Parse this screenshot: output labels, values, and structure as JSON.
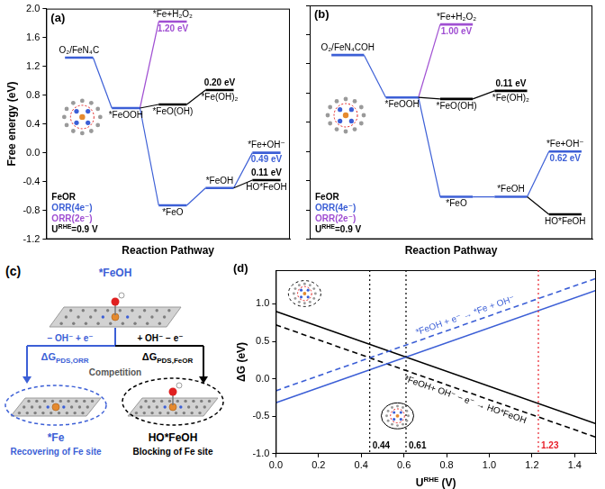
{
  "chart_data": [
    {
      "type": "energy_diagram",
      "panel": "(a)",
      "xlabel": "Reaction Pathway",
      "ylabel": "Free energy (eV)",
      "xlim": [
        -0.7,
        4.5
      ],
      "ylim": [
        -1.2,
        2.0
      ],
      "yticks": [
        -1.2,
        -0.8,
        -0.4,
        {
          "value": 0,
          "label": "0.0"
        },
        0.4,
        0.8,
        1.2,
        1.6,
        {
          "value": 2,
          "label": "2.0"
        }
      ],
      "tick_labels": "y",
      "condition": {
        "base": "U",
        "sup": "RHE",
        "rest": "=0.9 V"
      },
      "series": [
        {
          "name": "FeOR",
          "color": "#000000",
          "segments": [
            {
              "x": [
                1,
                2,
                3
              ],
              "values": [
                0.62,
                0.67,
                0.87
              ],
              "labels": [
                null,
                "*FeO(OH)",
                "*Fe(OH)₂"
              ],
              "notes": [
                null,
                null,
                "0.20 eV"
              ]
            },
            {
              "x": [
                3,
                4
              ],
              "values": [
                -0.49,
                -0.38
              ],
              "labels": [
                null,
                "HO*FeOH"
              ],
              "notes": [
                null,
                "0.11 eV"
              ]
            }
          ]
        },
        {
          "name": "ORR(4e⁻)",
          "color": "#3c5fd6",
          "segments": [
            {
              "x": [
                0,
                1,
                2,
                3,
                4
              ],
              "values": [
                1.32,
                0.62,
                -0.73,
                -0.49,
                0
              ],
              "labels": [
                "O₂/FeN₄C",
                "*FeOOH",
                "*FeO",
                "*FeOH",
                "*Fe+OH⁻"
              ],
              "notes": [
                null,
                null,
                null,
                null,
                "0.49 eV"
              ]
            }
          ]
        },
        {
          "name": "ORR(2e⁻)",
          "color": "#a04fd2",
          "segments": [
            {
              "x": [
                1,
                2
              ],
              "values": [
                0.62,
                1.82
              ],
              "labels": [
                null,
                "*Fe+H₂O₂"
              ],
              "notes": [
                null,
                "1.20 eV"
              ]
            }
          ]
        }
      ]
    },
    {
      "type": "energy_diagram",
      "panel": "(b)",
      "xlabel": "Reaction Pathway",
      "xlim": [
        -0.7,
        4.5
      ],
      "ylim": [
        -1.2,
        2.0
      ],
      "yticks": [
        -1.2,
        -0.8,
        -0.4,
        {
          "value": 0,
          "label": "0.0"
        },
        0.4,
        0.8,
        1.2,
        1.6,
        {
          "value": 2,
          "label": "2.0"
        }
      ],
      "tick_labels": false,
      "condition": {
        "base": "U",
        "sup": "RHE",
        "rest": "=0.9 V"
      },
      "series": [
        {
          "name": "FeOR",
          "color": "#000000",
          "segments": [
            {
              "x": [
                1,
                2,
                3
              ],
              "values": [
                0.74,
                0.72,
                0.83
              ],
              "labels": [
                null,
                "*FeO(OH)",
                "*Fe(OH)₂"
              ],
              "notes": [
                null,
                null,
                "0.11 eV"
              ]
            },
            {
              "x": [
                3,
                4
              ],
              "values": [
                -0.62,
                -0.86
              ],
              "labels": [
                null,
                "HO*FeOH"
              ],
              "notes": [
                null,
                null
              ]
            }
          ]
        },
        {
          "name": "ORR(4e⁻)",
          "color": "#3c5fd6",
          "segments": [
            {
              "x": [
                0,
                1,
                2,
                3,
                4
              ],
              "values": [
                1.32,
                0.74,
                -0.62,
                -0.62,
                0
              ],
              "labels": [
                "O₂/FeN₄COH",
                "*FeOOH",
                "*FeO",
                "*FeOH",
                "*Fe+OH⁻"
              ],
              "notes": [
                null,
                null,
                null,
                null,
                "0.62 eV"
              ]
            }
          ]
        },
        {
          "name": "ORR(2e⁻)",
          "color": "#a04fd2",
          "segments": [
            {
              "x": [
                1,
                2
              ],
              "values": [
                0.74,
                1.74
              ],
              "labels": [
                null,
                "*Fe+H₂O₂"
              ],
              "notes": [
                null,
                "1.00 eV"
              ]
            }
          ]
        }
      ]
    },
    {
      "type": "line",
      "panel": "(d)",
      "xlabel": {
        "base": "U",
        "sup": "RHE",
        "rest": " (V)"
      },
      "ylabel": "ΔG (eV)",
      "xlim": [
        0,
        1.5
      ],
      "ylim": [
        -1.0,
        1.45
      ],
      "xticks": [
        {
          "value": 0,
          "label": "0.0"
        },
        0.2,
        0.4,
        0.6,
        0.8,
        {
          "value": 1,
          "label": "1.0"
        },
        1.2,
        1.4
      ],
      "yticks": [
        {
          "value": -1,
          "label": "-1.0"
        },
        -0.5,
        {
          "value": 0,
          "label": "0.0"
        },
        0.5,
        {
          "value": 1,
          "label": "1.0"
        }
      ],
      "vlines": [
        {
          "x": 0.44,
          "color": "#000000"
        },
        {
          "x": 0.61,
          "color": "#000000"
        },
        {
          "x": 1.23,
          "color": "#e8212b"
        }
      ],
      "series": [
        {
          "color": "#3c5fd6",
          "line_style": "solid",
          "x": [
            0,
            1.5
          ],
          "values": [
            -0.32,
            1.18
          ]
        },
        {
          "color": "#3c5fd6",
          "line_style": "dashed",
          "x": [
            0,
            1.5
          ],
          "values": [
            -0.16,
            1.34
          ],
          "label": "*FeOH + e⁻ → *Fe + OH⁻"
        },
        {
          "color": "#000000",
          "line_style": "solid",
          "x": [
            0,
            1.5
          ],
          "values": [
            0.9,
            -0.6
          ]
        },
        {
          "color": "#000000",
          "line_style": "dashed",
          "x": [
            0,
            1.5
          ],
          "values": [
            0.72,
            -0.78
          ],
          "label": "*FeOH+ OH⁻ − e⁻ → HO*FeOH"
        }
      ]
    }
  ],
  "diagram": {
    "panel": "(c)",
    "top": "*FeOH",
    "left_step": "− OH⁻ + e⁻",
    "right_step": "+ OH⁻ − e⁻",
    "middle": "Competition",
    "left_energy": {
      "base": "ΔG",
      "sub": "PDS,ORR"
    },
    "right_energy": {
      "base": "ΔG",
      "sub": "PDS,FeOR"
    },
    "left_product": "*Fe",
    "left_caption": "Recovering of Fe site",
    "right_product": "HO*FeOH",
    "right_caption": "Blocking of Fe site"
  }
}
